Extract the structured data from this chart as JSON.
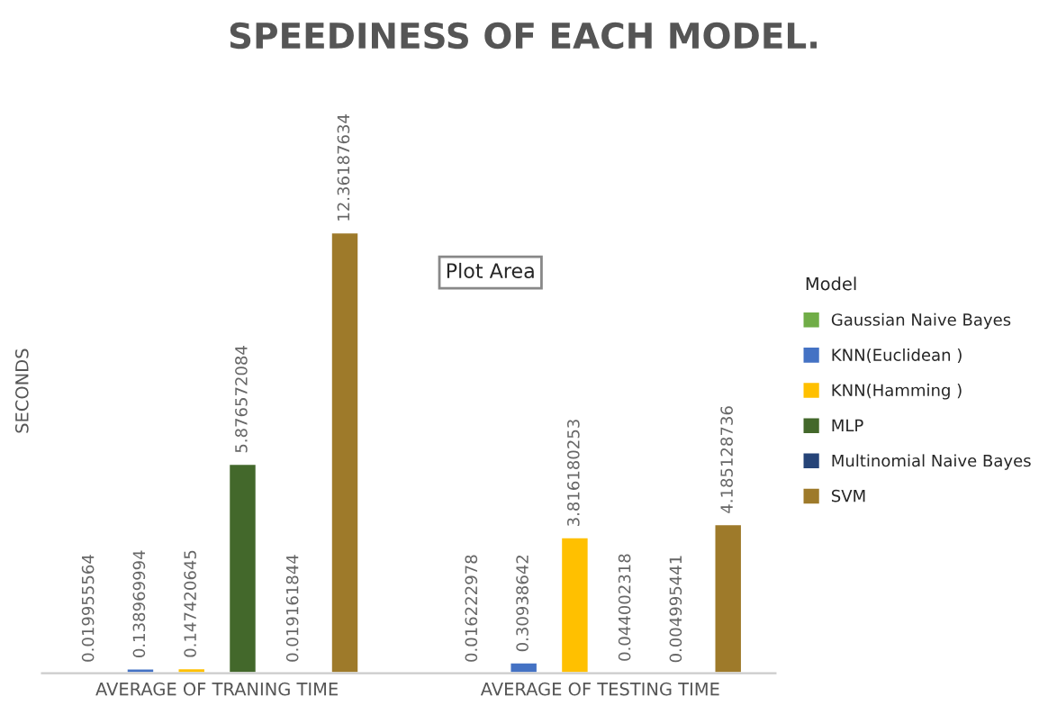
{
  "chart_data": {
    "type": "bar",
    "title": "SPEEDINESS OF EACH MODEL.",
    "ylabel": "SECONDS",
    "legend_title": "Model",
    "categories": [
      "AVERAGE OF TRANING TIME",
      "AVERAGE OF TESTING TIME"
    ],
    "series": [
      {
        "name": "Gaussian Naive Bayes",
        "color": "#70ad47",
        "values": [
          0.019955564,
          0.016222978
        ]
      },
      {
        "name": "KNN(Euclidean )",
        "color": "#4472c4",
        "values": [
          0.138969994,
          0.30938642
        ]
      },
      {
        "name": "KNN(Hamming )",
        "color": "#ffc000",
        "values": [
          0.147420645,
          3.816180253
        ]
      },
      {
        "name": "MLP",
        "color": "#43682b",
        "values": [
          5.876572084,
          0.044002318
        ]
      },
      {
        "name": "Multinomial Naive Bayes",
        "color": "#264478",
        "values": [
          0.019161844,
          0.004995441
        ]
      },
      {
        "name": "SVM",
        "color": "#9e7a2a",
        "values": [
          12.36187634,
          4.185128736
        ]
      }
    ],
    "data_labels": true,
    "legend": "right",
    "annotations": [
      "Plot Area"
    ]
  }
}
